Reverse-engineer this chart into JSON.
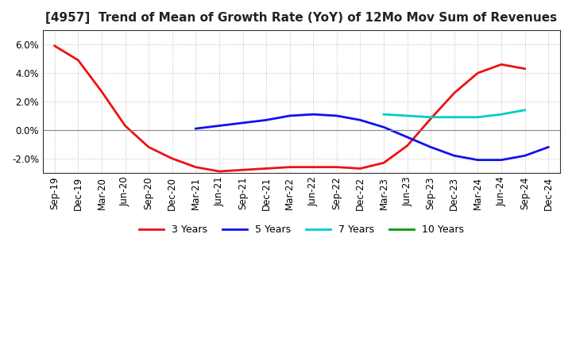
{
  "title": "[4957]  Trend of Mean of Growth Rate (YoY) of 12Mo Mov Sum of Revenues",
  "x_labels": [
    "Sep-19",
    "Dec-19",
    "Mar-20",
    "Jun-20",
    "Sep-20",
    "Dec-20",
    "Mar-21",
    "Jun-21",
    "Sep-21",
    "Dec-21",
    "Mar-22",
    "Jun-22",
    "Sep-22",
    "Dec-22",
    "Mar-23",
    "Jun-23",
    "Sep-23",
    "Dec-23",
    "Mar-24",
    "Jun-24",
    "Sep-24",
    "Dec-24"
  ],
  "ylim": [
    -0.03,
    0.07
  ],
  "yticks": [
    -0.02,
    0.0,
    0.02,
    0.04,
    0.06
  ],
  "series": {
    "3 Years": {
      "color": "#EE1111",
      "x_indices": [
        0,
        1,
        2,
        3,
        4,
        5,
        6,
        7,
        8,
        9,
        10,
        11,
        12,
        13,
        14,
        15,
        16,
        17,
        18,
        19,
        20
      ],
      "y": [
        0.059,
        0.049,
        0.027,
        0.003,
        -0.012,
        -0.02,
        -0.026,
        -0.029,
        -0.028,
        -0.027,
        -0.026,
        -0.026,
        -0.026,
        -0.027,
        -0.023,
        -0.011,
        0.008,
        0.026,
        0.04,
        0.046,
        0.043
      ]
    },
    "5 Years": {
      "color": "#1111EE",
      "x_indices": [
        6,
        7,
        8,
        9,
        10,
        11,
        12,
        13,
        14,
        15,
        16,
        17,
        18,
        19,
        20,
        21
      ],
      "y": [
        0.001,
        0.003,
        0.005,
        0.007,
        0.01,
        0.011,
        0.01,
        0.007,
        0.002,
        -0.005,
        -0.012,
        -0.018,
        -0.021,
        -0.021,
        -0.018,
        -0.012
      ]
    },
    "7 Years": {
      "color": "#00CCCC",
      "x_indices": [
        14,
        15,
        16,
        17,
        18,
        19,
        20
      ],
      "y": [
        0.011,
        0.01,
        0.009,
        0.009,
        0.009,
        0.011,
        0.014
      ]
    },
    "10 Years": {
      "color": "#009900",
      "x_indices": [],
      "y": []
    }
  },
  "legend_items": [
    "3 Years",
    "5 Years",
    "7 Years",
    "10 Years"
  ],
  "legend_colors": [
    "#EE1111",
    "#1111EE",
    "#00CCCC",
    "#009900"
  ],
  "background_color": "#FFFFFF",
  "grid_color": "#BBBBBB",
  "title_fontsize": 11,
  "axis_fontsize": 8.5
}
